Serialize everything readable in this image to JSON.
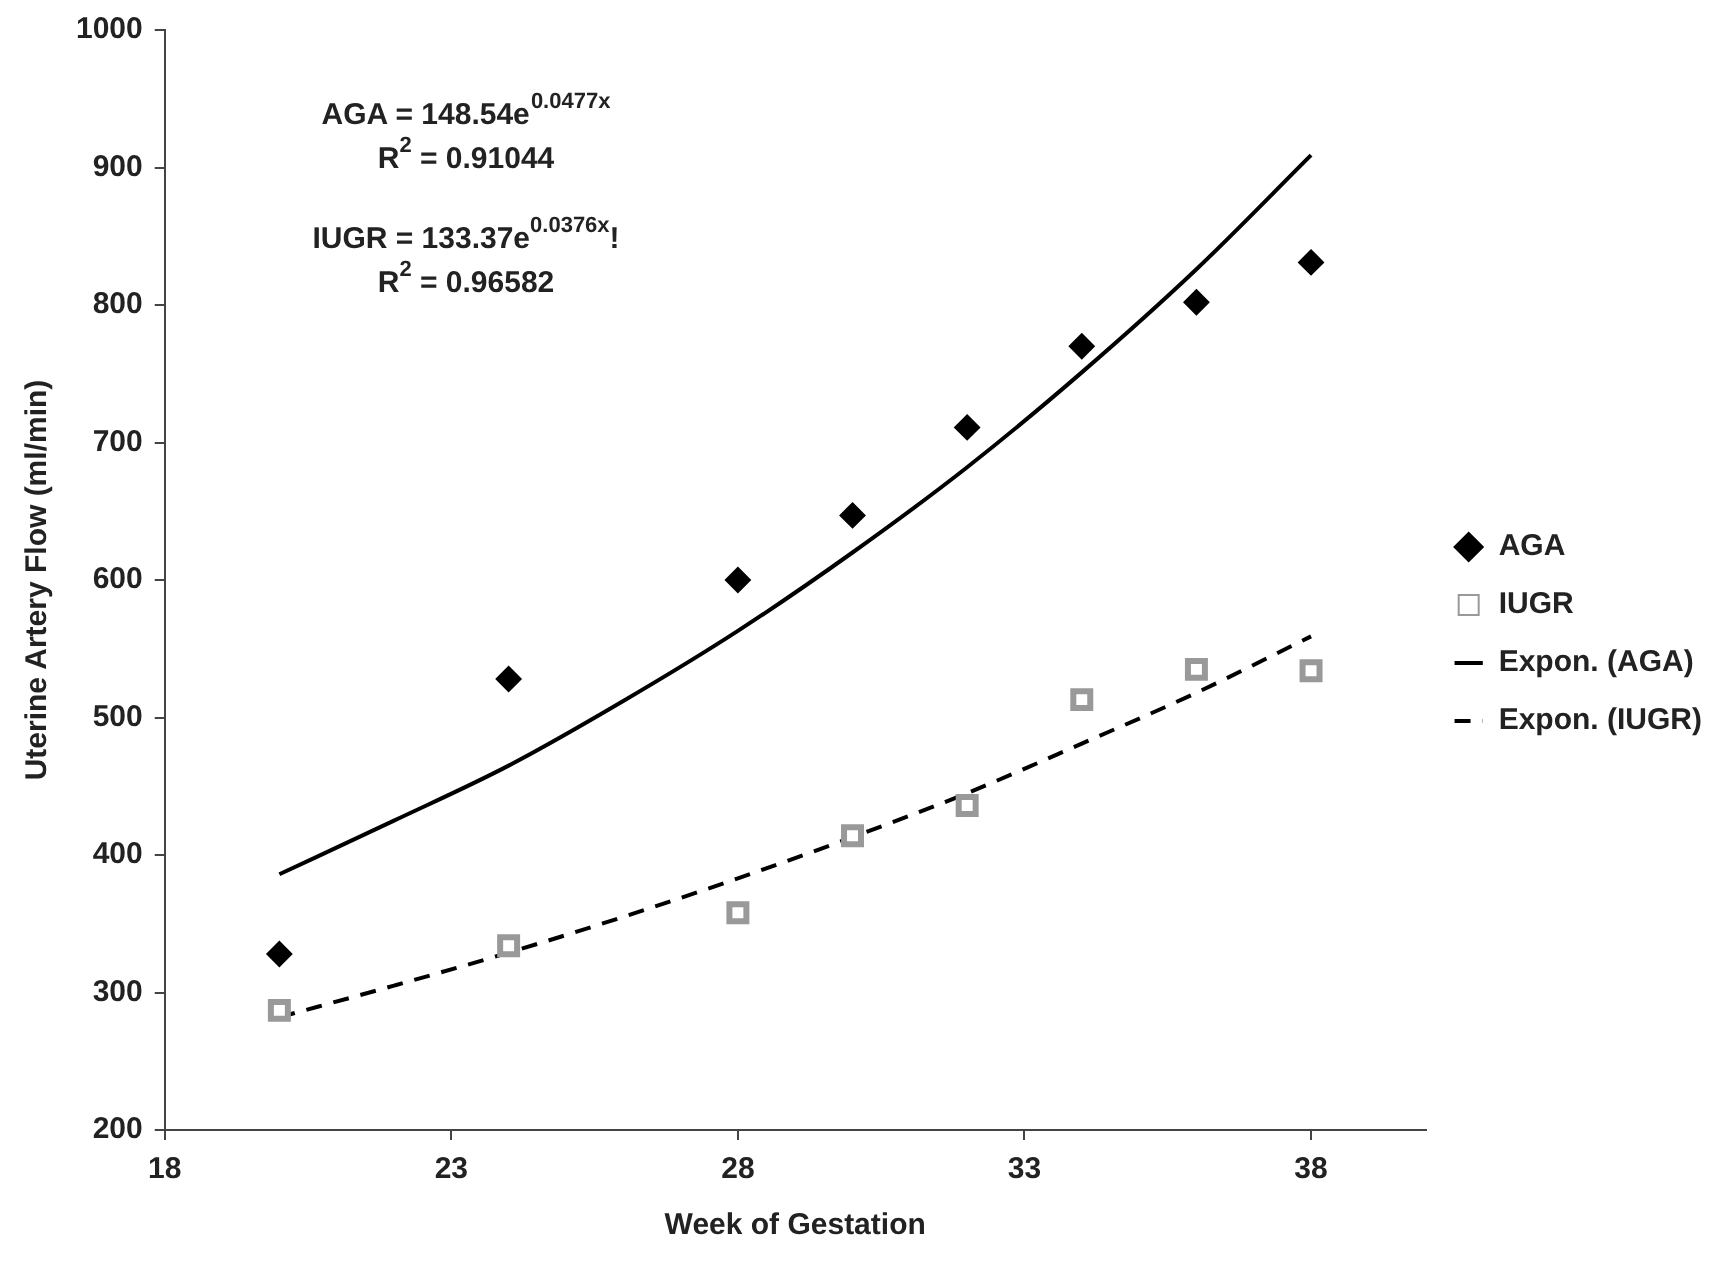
{
  "chart_data": {
    "type": "scatter",
    "xlabel": "Week of Gestation",
    "ylabel": "Uterine Artery Flow (ml/min)",
    "x": [
      20,
      24,
      28,
      30,
      32,
      34,
      36,
      38
    ],
    "xlim": [
      18,
      40
    ],
    "xticks": [
      18,
      23,
      28,
      33,
      38
    ],
    "ylim": [
      200,
      1000
    ],
    "yticks": [
      200,
      300,
      400,
      500,
      600,
      700,
      800,
      900,
      1000
    ],
    "grid": false,
    "legend": "right",
    "annotations": [
      "AGA = 148.54e$^{0.0477x}$",
      "R$^{2}$ = 0.91044",
      "IUGR = 133.37e$^{0.0376x}$!",
      "R$^{2}$ = 0.96582"
    ],
    "series": [
      {
        "name": "AGA",
        "type": "scatter",
        "marker": "diamond",
        "color": "#000000",
        "values": [
          328,
          528,
          600,
          647,
          711,
          770,
          802,
          831
        ]
      },
      {
        "name": "IUGR",
        "type": "scatter",
        "marker": "square",
        "color": "#999999",
        "values": [
          287,
          334,
          358,
          414,
          436,
          513,
          535,
          534
        ]
      },
      {
        "name": "Expon. (AGA)",
        "type": "line",
        "marker": "none",
        "line_style": "solid",
        "color": "#000000",
        "x": [
          20,
          22,
          24,
          26,
          28,
          30,
          32,
          34,
          36,
          38
        ],
        "values": [
          386,
          425,
          465,
          512,
          563,
          620,
          682,
          751,
          826,
          909
        ]
      },
      {
        "name": "Expon. (IUGR)",
        "type": "line",
        "marker": "none",
        "line_style": "dashed",
        "color": "#000000",
        "x": [
          20,
          22,
          24,
          26,
          28,
          30,
          32,
          34,
          36,
          38
        ],
        "values": [
          282,
          305,
          329,
          355,
          383,
          413,
          445,
          481,
          518,
          559
        ]
      }
    ]
  }
}
